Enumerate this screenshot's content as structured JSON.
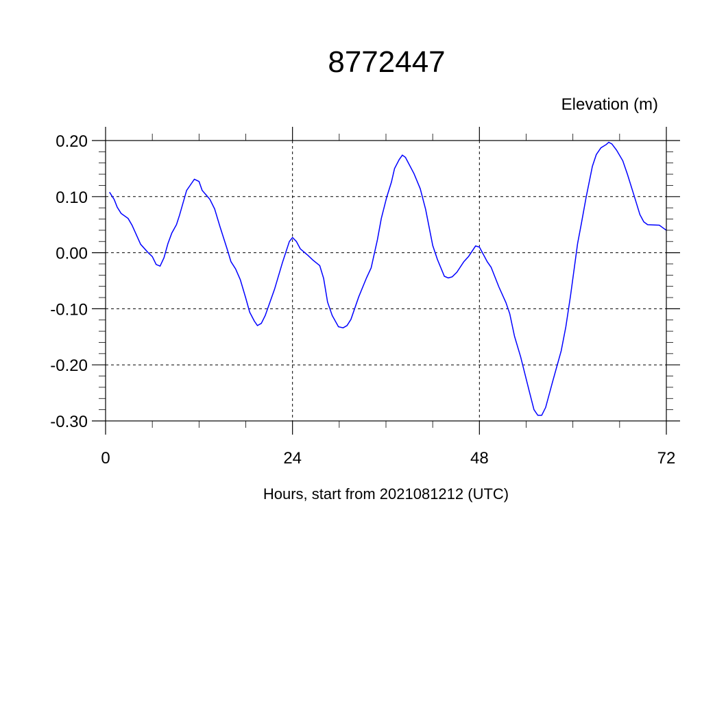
{
  "chart_data": {
    "type": "line",
    "title": "8772447",
    "ylabel": "Elevation (m)",
    "xlabel": "Hours, start from 2021081212 (UTC)",
    "xlim": [
      0,
      72
    ],
    "ylim": [
      -0.3,
      0.2
    ],
    "x_ticks": [
      0,
      24,
      48,
      72
    ],
    "x_tick_labels": [
      "0",
      "24",
      "48",
      "72"
    ],
    "y_ticks": [
      0.2,
      0.1,
      0.0,
      -0.1,
      -0.2,
      -0.3
    ],
    "y_tick_labels": [
      "0.20",
      "0.10",
      "0.00",
      "-0.10",
      "-0.20",
      "-0.30"
    ],
    "grid": "dashed at major ticks",
    "series": [
      {
        "color": "#0000ff",
        "x": [
          0.5,
          1.1,
          1.5,
          2,
          2.9,
          3.4,
          4.5,
          5.4,
          6,
          6.5,
          7,
          7.5,
          8,
          8.5,
          9.1,
          9.5,
          10.4,
          11,
          11.4,
          12,
          12.4,
          12.9,
          13.4,
          14,
          14.7,
          15.6,
          16.1,
          16.7,
          17.3,
          18,
          18.5,
          19.1,
          19.5,
          20,
          20.5,
          21.7,
          22.7,
          23.6,
          24,
          24.5,
          25,
          26,
          26.6,
          27.5,
          28,
          28.5,
          29.1,
          29.9,
          30.5,
          31,
          31.5,
          32.5,
          33.5,
          34.1,
          34.9,
          35.4,
          36.1,
          36.7,
          37.1,
          37.7,
          38.1,
          38.5,
          39.6,
          40.4,
          41.1,
          42,
          42.6,
          43.5,
          44,
          44.5,
          45.1,
          46,
          46.6,
          47.5,
          48,
          49,
          49.5,
          50.5,
          51.4,
          51.9,
          52.5,
          53.3,
          54.4,
          55,
          55.5,
          56,
          56.5,
          57.4,
          58.5,
          59.1,
          59.7,
          60.6,
          61.1,
          61.7,
          62.5,
          63,
          63.6,
          64.3,
          64.6,
          65,
          65.6,
          66.4,
          67,
          67.9,
          68.6,
          69.1,
          69.6,
          71.1,
          71.5,
          72
        ],
        "y": [
          0.108,
          0.095,
          0.081,
          0.07,
          0.061,
          0.049,
          0.015,
          0.001,
          -0.007,
          -0.021,
          -0.024,
          -0.009,
          0.016,
          0.035,
          0.05,
          0.067,
          0.111,
          0.123,
          0.131,
          0.127,
          0.111,
          0.103,
          0.095,
          0.078,
          0.046,
          0.007,
          -0.016,
          -0.029,
          -0.048,
          -0.081,
          -0.106,
          -0.122,
          -0.13,
          -0.126,
          -0.112,
          -0.065,
          -0.018,
          0.02,
          0.027,
          0.02,
          0.007,
          -0.005,
          -0.013,
          -0.023,
          -0.046,
          -0.088,
          -0.112,
          -0.132,
          -0.134,
          -0.13,
          -0.119,
          -0.079,
          -0.045,
          -0.027,
          0.023,
          0.061,
          0.099,
          0.126,
          0.15,
          0.166,
          0.174,
          0.17,
          0.141,
          0.114,
          0.077,
          0.013,
          -0.012,
          -0.042,
          -0.045,
          -0.043,
          -0.035,
          -0.016,
          -0.007,
          0.012,
          0.01,
          -0.016,
          -0.026,
          -0.061,
          -0.089,
          -0.109,
          -0.149,
          -0.186,
          -0.247,
          -0.28,
          -0.29,
          -0.29,
          -0.276,
          -0.23,
          -0.175,
          -0.132,
          -0.076,
          0.016,
          0.053,
          0.099,
          0.154,
          0.175,
          0.187,
          0.193,
          0.197,
          0.194,
          0.183,
          0.164,
          0.14,
          0.1,
          0.068,
          0.055,
          0.05,
          0.049,
          0.045,
          0.04
        ]
      }
    ]
  }
}
